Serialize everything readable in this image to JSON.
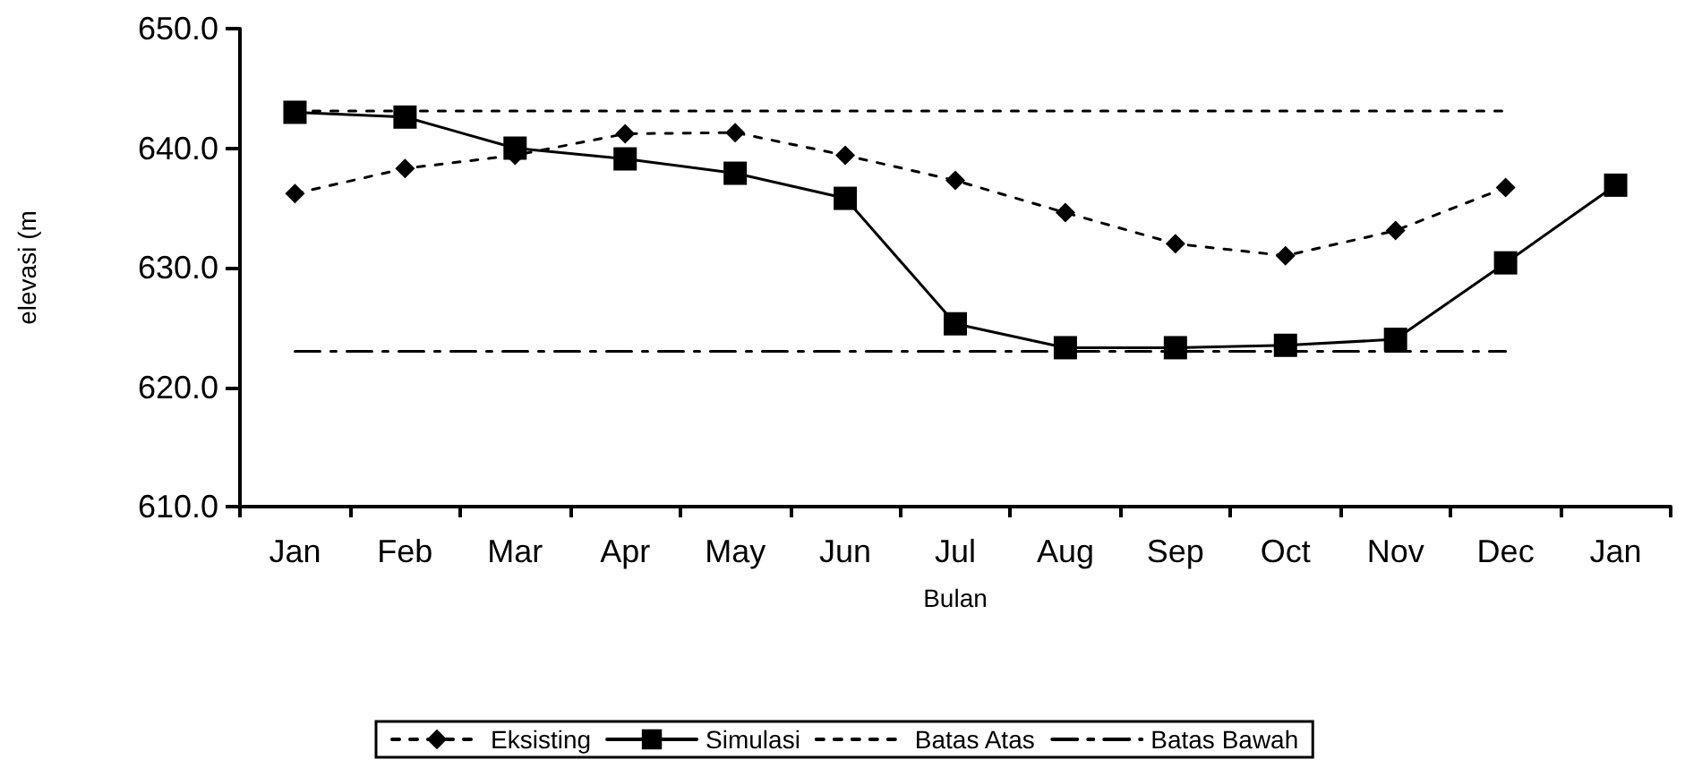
{
  "chart_data": {
    "type": "line",
    "xlabel": "Bulan",
    "ylabel": "elevasi (m",
    "categories": [
      "Jan",
      "Feb",
      "Mar",
      "Apr",
      "May",
      "Jun",
      "Jul",
      "Aug",
      "Sep",
      "Oct",
      "Nov",
      "Dec",
      "Jan"
    ],
    "series": [
      {
        "name": "Eksisting",
        "color": "#000000",
        "marker": "diamond",
        "line_style": "dotted",
        "values": [
          636.2,
          638.3,
          639.4,
          641.2,
          641.3,
          639.4,
          637.3,
          634.6,
          632.0,
          631.0,
          633.1,
          636.7,
          null
        ]
      },
      {
        "name": "Simulasi",
        "color": "#000000",
        "marker": "square",
        "line_style": "solid",
        "values": [
          643.0,
          642.6,
          640.0,
          639.1,
          637.9,
          635.8,
          625.3,
          623.3,
          623.3,
          623.5,
          624.0,
          630.4,
          636.9
        ]
      },
      {
        "name": "Batas Atas",
        "color": "#000000",
        "marker": "none",
        "line_style": "dotted",
        "values": [
          643.1,
          643.1,
          643.1,
          643.1,
          643.1,
          643.1,
          643.1,
          643.1,
          643.1,
          643.1,
          643.1,
          643.1,
          null
        ]
      },
      {
        "name": "Batas Bawah",
        "color": "#000000",
        "marker": "none",
        "line_style": "dashed",
        "values": [
          623.0,
          623.0,
          623.0,
          623.0,
          623.0,
          623.0,
          623.0,
          623.0,
          623.0,
          623.0,
          623.0,
          623.0,
          null
        ]
      }
    ],
    "ylim": [
      610,
      650
    ],
    "yticks": [
      {
        "value": 610,
        "label": "610.0"
      },
      {
        "value": 620,
        "label": "620.0"
      },
      {
        "value": 630,
        "label": "630.0"
      },
      {
        "value": 640,
        "label": "640.0"
      },
      {
        "value": 650,
        "label": "650.0"
      }
    ],
    "grid": false,
    "legend": "bottom"
  }
}
